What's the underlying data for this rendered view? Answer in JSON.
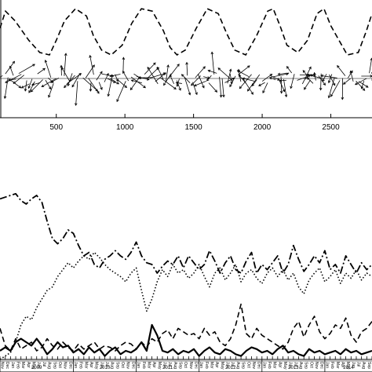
{
  "chart_data": [
    {
      "type": "line",
      "x_ticks": [
        500,
        1000,
        1500,
        2000,
        2500
      ],
      "xlim": [
        90,
        2800
      ],
      "series": [
        {
          "style": "dashed",
          "x": [
            90,
            130,
            200,
            300,
            380,
            450,
            500,
            560,
            640,
            720,
            770,
            830,
            900,
            980,
            1050,
            1120,
            1200,
            1280,
            1330,
            1380,
            1440,
            1520,
            1600,
            1680,
            1740,
            1800,
            1880,
            1960,
            2040,
            2080,
            2130,
            2180,
            2260,
            2330,
            2400,
            2450,
            2500,
            2560,
            2620,
            2700,
            2760,
            2800
          ],
          "values": [
            0.55,
            0.9,
            0.7,
            0.3,
            0.05,
            0.0,
            0.3,
            0.7,
            0.95,
            0.8,
            0.4,
            0.1,
            0.0,
            0.2,
            0.65,
            0.95,
            0.9,
            0.5,
            0.15,
            0.0,
            0.1,
            0.55,
            0.95,
            0.85,
            0.45,
            0.1,
            0.0,
            0.4,
            0.9,
            0.95,
            0.6,
            0.2,
            0.05,
            0.3,
            0.85,
            0.95,
            0.6,
            0.3,
            0.0,
            0.05,
            0.5,
            0.85
          ]
        }
      ],
      "vectors": {
        "style": "arrows",
        "x_range": [
          90,
          2800
        ],
        "count": 140
      }
    },
    {
      "type": "line",
      "month_labels": [
        "Nov",
        "Dec",
        "Jan",
        "Feb",
        "Mar",
        "Apr",
        "May",
        "Jun",
        "Jul",
        "Aug",
        "Sep",
        "Oct",
        "Nov",
        "Dec",
        "Jan",
        "Feb",
        "Mar",
        "Apr",
        "May",
        "Jun",
        "Jul",
        "Aug",
        "Sep",
        "Oct",
        "Nov",
        "Dec",
        "Jan",
        "Feb",
        "Mar",
        "Apr",
        "May",
        "Jun",
        "Jul",
        "Aug",
        "Sep",
        "Oct",
        "Nov",
        "Dec",
        "Jan",
        "Feb",
        "Mar",
        "Apr",
        "May",
        "Jun",
        "Jul",
        "Aug",
        "Sep",
        "Oct",
        "Nov",
        "Dec",
        "Jan",
        "Feb",
        "Mar",
        "Apr",
        "May",
        "Jun",
        "Jul",
        "Aug",
        "Sep",
        "Oct",
        "Nov",
        "Dec",
        "Jan",
        "Feb",
        "Mar",
        "Apr",
        "May",
        "Jun",
        "Jul",
        "Aug",
        "Sep",
        "Oct"
      ],
      "years": [
        {
          "label": "2009",
          "start": 0,
          "end": 14
        },
        {
          "label": "2010",
          "start": 14,
          "end": 26
        },
        {
          "label": "2011",
          "start": 26,
          "end": 38
        },
        {
          "label": "2012",
          "start": 38,
          "end": 50
        },
        {
          "label": "2013",
          "start": 50,
          "end": 62
        },
        {
          "label": "2014",
          "start": 62,
          "end": 72
        }
      ],
      "ylim": [
        0,
        1
      ],
      "series": [
        {
          "style": "dash-dot",
          "values": [
            0.93,
            0.94,
            0.95,
            0.96,
            0.92,
            0.9,
            0.93,
            0.95,
            0.91,
            0.8,
            0.7,
            0.67,
            0.7,
            0.75,
            0.73,
            0.66,
            0.6,
            0.62,
            0.55,
            0.53,
            0.58,
            0.6,
            0.63,
            0.6,
            0.58,
            0.62,
            0.68,
            0.6,
            0.56,
            0.55,
            0.5,
            0.54,
            0.57,
            0.55,
            0.6,
            0.53,
            0.6,
            0.56,
            0.52,
            0.55,
            0.63,
            0.57,
            0.5,
            0.56,
            0.6,
            0.52,
            0.5,
            0.57,
            0.62,
            0.5,
            0.55,
            0.52,
            0.56,
            0.6,
            0.5,
            0.55,
            0.66,
            0.58,
            0.51,
            0.55,
            0.6,
            0.56,
            0.63,
            0.52,
            0.55,
            0.5,
            0.6,
            0.55,
            0.5,
            0.56,
            0.52,
            0.55
          ]
        },
        {
          "style": "dotted",
          "values": [
            0.0,
            0.02,
            0.04,
            0.1,
            0.2,
            0.25,
            0.23,
            0.3,
            0.35,
            0.4,
            0.42,
            0.48,
            0.52,
            0.56,
            0.53,
            0.57,
            0.6,
            0.58,
            0.62,
            0.59,
            0.55,
            0.52,
            0.5,
            0.48,
            0.45,
            0.5,
            0.53,
            0.4,
            0.28,
            0.35,
            0.45,
            0.52,
            0.48,
            0.55,
            0.5,
            0.52,
            0.47,
            0.5,
            0.55,
            0.48,
            0.42,
            0.5,
            0.53,
            0.46,
            0.5,
            0.55,
            0.45,
            0.5,
            0.52,
            0.47,
            0.44,
            0.5,
            0.53,
            0.48,
            0.52,
            0.46,
            0.5,
            0.42,
            0.38,
            0.46,
            0.5,
            0.53,
            0.45,
            0.48,
            0.52,
            0.44,
            0.5,
            0.47,
            0.52,
            0.46,
            0.5,
            0.48
          ]
        },
        {
          "style": "dashed",
          "values": [
            0.18,
            0.08,
            0.05,
            0.12,
            0.06,
            0.08,
            0.1,
            0.05,
            0.07,
            0.12,
            0.08,
            0.06,
            0.1,
            0.07,
            0.05,
            0.09,
            0.06,
            0.08,
            0.1,
            0.06,
            0.08,
            0.07,
            0.05,
            0.08,
            0.1,
            0.09,
            0.06,
            0.1,
            0.07,
            0.12,
            0.1,
            0.15,
            0.17,
            0.12,
            0.18,
            0.16,
            0.14,
            0.15,
            0.12,
            0.18,
            0.14,
            0.16,
            0.1,
            0.08,
            0.12,
            0.2,
            0.32,
            0.15,
            0.12,
            0.18,
            0.14,
            0.12,
            0.1,
            0.08,
            0.06,
            0.1,
            0.18,
            0.22,
            0.13,
            0.2,
            0.25,
            0.16,
            0.12,
            0.15,
            0.2,
            0.18,
            0.24,
            0.14,
            0.1,
            0.16,
            0.18,
            0.22
          ]
        },
        {
          "style": "solid",
          "values": [
            0.05,
            0.07,
            0.05,
            0.1,
            0.12,
            0.1,
            0.08,
            0.12,
            0.08,
            0.03,
            0.06,
            0.1,
            0.07,
            0.08,
            0.04,
            0.06,
            0.03,
            0.07,
            0.04,
            0.06,
            0.02,
            0.05,
            0.07,
            0.03,
            0.05,
            0.04,
            0.06,
            0.1,
            0.05,
            0.2,
            0.14,
            0.05,
            0.04,
            0.06,
            0.03,
            0.05,
            0.04,
            0.06,
            0.02,
            0.05,
            0.07,
            0.04,
            0.03,
            0.06,
            0.05,
            0.03,
            0.02,
            0.05,
            0.07,
            0.06,
            0.04,
            0.05,
            0.03,
            0.06,
            0.08,
            0.04,
            0.05,
            0.03,
            0.02,
            0.06,
            0.04,
            0.05,
            0.03,
            0.04,
            0.05,
            0.03,
            0.06,
            0.04,
            0.05,
            0.03,
            0.04,
            0.05
          ]
        }
      ]
    }
  ]
}
